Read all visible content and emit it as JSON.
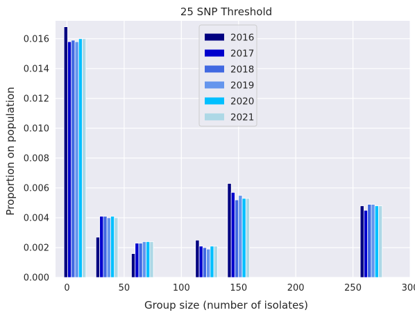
{
  "chart_data": {
    "type": "bar",
    "title": "25 SNP Threshold",
    "xlabel": "Group size (number of isolates)",
    "ylabel": "Proportion on population",
    "xlim": [
      -10,
      300
    ],
    "ylim": [
      0,
      0.0172
    ],
    "xticks": [
      0,
      50,
      100,
      150,
      200,
      250,
      300
    ],
    "yticks": [
      "0.000",
      "0.002",
      "0.004",
      "0.006",
      "0.008",
      "0.010",
      "0.012",
      "0.014",
      "0.016"
    ],
    "grid": true,
    "legend_position": "top-center",
    "groups": [
      7,
      35,
      66,
      122,
      150,
      266
    ],
    "series": [
      {
        "name": "2016",
        "color": "#000080",
        "values": [
          0.0168,
          0.0027,
          0.0016,
          0.0025,
          0.0063,
          0.0048
        ]
      },
      {
        "name": "2017",
        "color": "#0000cd",
        "values": [
          0.0158,
          0.0041,
          0.0023,
          0.0021,
          0.0057,
          0.0045
        ]
      },
      {
        "name": "2018",
        "color": "#4169e1",
        "values": [
          0.0159,
          0.0041,
          0.0023,
          0.002,
          0.0052,
          0.0049
        ]
      },
      {
        "name": "2019",
        "color": "#6495ed",
        "values": [
          0.0158,
          0.004,
          0.0024,
          0.0019,
          0.0055,
          0.0049
        ]
      },
      {
        "name": "2020",
        "color": "#00bfff",
        "values": [
          0.016,
          0.0041,
          0.0024,
          0.0021,
          0.0053,
          0.0048
        ]
      },
      {
        "name": "2021",
        "color": "#add8e6",
        "values": [
          0.016,
          0.004,
          0.0024,
          0.0021,
          0.0053,
          0.0048
        ]
      }
    ]
  }
}
